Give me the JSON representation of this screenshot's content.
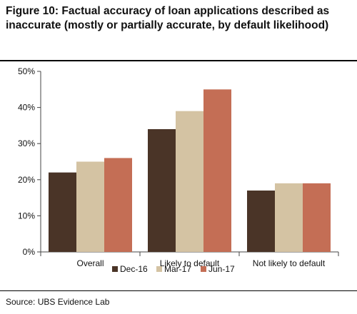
{
  "figure": {
    "title": "Figure 10: Factual accuracy of loan applications described as inaccurate (mostly or partially accurate, by default likelihood)",
    "source": "Source:  UBS Evidence Lab"
  },
  "chart_data": {
    "type": "bar",
    "categories": [
      "Overall",
      "Likely to default",
      "Not likely to default"
    ],
    "series": [
      {
        "name": "Dec-16",
        "values": [
          22,
          34,
          17
        ],
        "color": "#4a3427"
      },
      {
        "name": "Mar-17",
        "values": [
          25,
          39,
          19
        ],
        "color": "#d4c3a3"
      },
      {
        "name": "Jun-17",
        "values": [
          26,
          45,
          19
        ],
        "color": "#c46e55"
      }
    ],
    "y_ticks": [
      "0%",
      "10%",
      "20%",
      "30%",
      "40%",
      "50%"
    ],
    "ylim": [
      0,
      50
    ],
    "grid": false,
    "legend_position": "bottom"
  }
}
